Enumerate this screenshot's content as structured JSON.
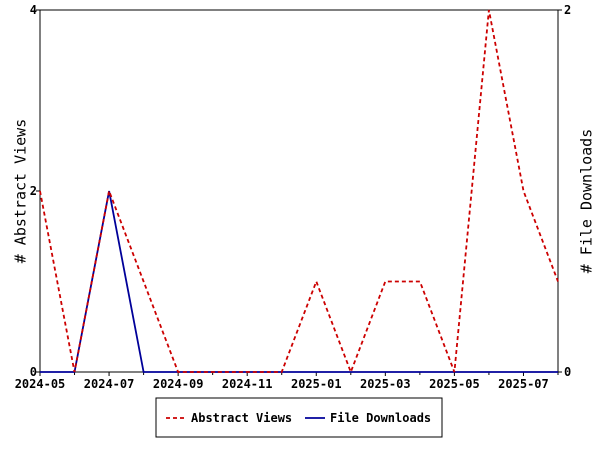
{
  "chart_data": {
    "type": "line",
    "x": [
      "2024-05",
      "2024-06",
      "2024-07",
      "2024-08",
      "2024-09",
      "2024-10",
      "2024-11",
      "2024-12",
      "2025-01",
      "2025-02",
      "2025-03",
      "2025-04",
      "2025-05",
      "2025-06",
      "2025-07",
      "2025-08"
    ],
    "x_tick_labels": [
      "2024-05",
      "2024-07",
      "2024-09",
      "2024-11",
      "2025-01",
      "2025-03",
      "2025-05",
      "2025-07"
    ],
    "series": [
      {
        "name": "Abstract Views",
        "axis": "left",
        "color": "#cc0000",
        "dash": "dashed",
        "values": [
          2,
          0,
          2,
          1,
          0,
          0,
          0,
          0,
          1,
          0,
          1,
          1,
          0,
          4,
          2,
          1
        ]
      },
      {
        "name": "File Downloads",
        "axis": "right",
        "color": "#000099",
        "dash": "solid",
        "values": [
          0,
          0,
          1,
          0,
          0,
          0,
          0,
          0,
          0,
          0,
          0,
          0,
          0,
          0,
          0,
          0
        ]
      }
    ],
    "ylabel": "# Abstract Views",
    "ylabel_right": "# File Downloads",
    "ylim": [
      0,
      4
    ],
    "ylim_right": [
      0,
      2
    ],
    "y_ticks": [
      "0",
      "2",
      "4"
    ],
    "y_ticks_right": [
      "0",
      "2"
    ],
    "grid": false,
    "legend_position": "bottom"
  }
}
